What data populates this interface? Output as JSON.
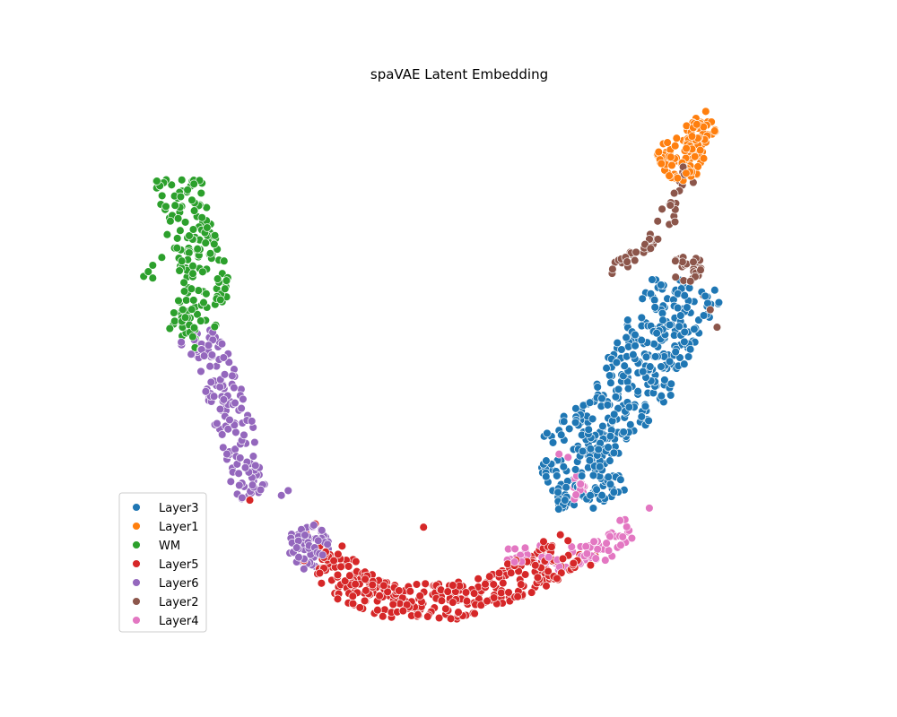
{
  "chart_data": {
    "type": "scatter",
    "title": "spaVAE Latent Embedding",
    "xlabel": "",
    "ylabel": "",
    "axes_visible": false,
    "grid": false,
    "legend_position": "lower-left",
    "point_style": "filled circles with white edge",
    "series": [
      {
        "name": "Layer3",
        "color": "#1f77b4",
        "regions": [
          {
            "type": "strip",
            "path": [
              [
                2.85,
                0.4
              ],
              [
                2.4,
                2.0
              ],
              [
                3.65,
                3.75
              ],
              [
                4.3,
                5.7
              ],
              [
                4.65,
                6.5
              ],
              [
                4.95,
                7.2
              ]
            ],
            "half_width": 0.85,
            "count": 430
          }
        ],
        "points": [
          [
            3.0,
            1.3
          ],
          [
            4.85,
            7.3
          ],
          [
            2.1,
            2.75
          ],
          [
            4.5,
            6.9
          ]
        ]
      },
      {
        "name": "Layer1",
        "color": "#ff7f0e",
        "regions": [
          {
            "type": "ellipse",
            "center": [
              4.8,
              11.3
            ],
            "radii": [
              0.55,
              0.7
            ],
            "count": 80
          },
          {
            "type": "ellipse",
            "center": [
              5.25,
              12.2
            ],
            "radii": [
              0.35,
              0.55
            ],
            "count": 40
          }
        ],
        "points": [
          [
            5.35,
            12.8
          ]
        ]
      },
      {
        "name": "WM",
        "color": "#2ca02c",
        "regions": [
          {
            "type": "strip",
            "path": [
              [
                -6.4,
                10.75
              ],
              [
                -6.1,
                9.2
              ],
              [
                -5.75,
                7.8
              ],
              [
                -5.85,
                6.4
              ],
              [
                -6.25,
                5.8
              ]
            ],
            "half_width": 0.55,
            "count": 170
          }
        ],
        "points": [
          [
            -7.1,
            7.6
          ],
          [
            -7.0,
            7.75
          ],
          [
            -6.9,
            7.95
          ],
          [
            -6.7,
            8.2
          ],
          [
            -6.9,
            7.55
          ]
        ]
      },
      {
        "name": "Layer5",
        "color": "#d62728",
        "regions": [
          {
            "type": "strip",
            "path": [
              [
                -3.1,
                -1.1
              ],
              [
                -2.7,
                -2.05
              ],
              [
                -1.6,
                -2.6
              ],
              [
                -0.2,
                -2.65
              ],
              [
                1.0,
                -2.1
              ],
              [
                1.9,
                -1.4
              ],
              [
                2.25,
                -0.9
              ]
            ],
            "half_width": 0.55,
            "count": 330
          }
        ],
        "points": [
          [
            -3.5,
            -0.5
          ],
          [
            -3.2,
            -0.9
          ],
          [
            -4.75,
            0.55
          ],
          [
            -3.3,
            -0.2
          ],
          [
            -0.9,
            -0.3
          ],
          [
            2.8,
            -1.5
          ],
          [
            2.9,
            -1.2
          ]
        ]
      },
      {
        "name": "Layer6",
        "color": "#9467bd",
        "regions": [
          {
            "type": "strip",
            "path": [
              [
                -6.0,
                5.85
              ],
              [
                -5.55,
                4.9
              ],
              [
                -5.25,
                3.6
              ],
              [
                -5.0,
                2.4
              ],
              [
                -4.85,
                1.2
              ],
              [
                -4.55,
                0.75
              ]
            ],
            "half_width": 0.42,
            "count": 150
          },
          {
            "type": "ellipse",
            "center": [
              -3.45,
              -0.9
            ],
            "radii": [
              0.45,
              0.75
            ],
            "count": 60
          }
        ],
        "points": [
          [
            -3.9,
            0.85
          ],
          [
            -4.05,
            0.7
          ]
        ]
      },
      {
        "name": "Layer2",
        "color": "#8c564b",
        "regions": [
          {
            "type": "strip",
            "path": [
              [
                3.2,
                7.8
              ],
              [
                3.9,
                8.3
              ],
              [
                4.5,
                9.3
              ],
              [
                4.7,
                10.2
              ],
              [
                5.0,
                10.9
              ]
            ],
            "half_width": 0.22,
            "count": 45
          },
          {
            "type": "ellipse",
            "center": [
              4.95,
              7.85
            ],
            "radii": [
              0.35,
              0.45
            ],
            "count": 25
          }
        ],
        "points": [
          [
            5.3,
            7.0
          ],
          [
            5.45,
            6.55
          ],
          [
            5.6,
            6.0
          ],
          [
            4.85,
            11.05
          ]
        ]
      },
      {
        "name": "Layer4",
        "color": "#e377c2",
        "regions": [
          {
            "type": "strip",
            "path": [
              [
                1.0,
                -1.0
              ],
              [
                2.1,
                -1.35
              ],
              [
                3.1,
                -1.0
              ],
              [
                3.7,
                -0.3
              ]
            ],
            "half_width": 0.35,
            "count": 75
          },
          {
            "type": "ellipse",
            "center": [
              2.5,
              0.95
            ],
            "radii": [
              0.18,
              0.4
            ],
            "count": 15
          }
        ],
        "points": [
          [
            2.3,
            1.9
          ],
          [
            2.1,
            2.0
          ],
          [
            3.05,
            0.6
          ],
          [
            4.1,
            0.3
          ]
        ]
      }
    ]
  }
}
